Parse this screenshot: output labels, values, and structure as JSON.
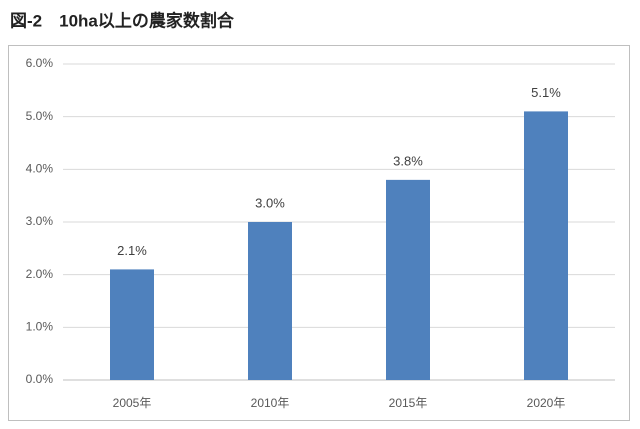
{
  "chart_data": {
    "type": "bar",
    "title": "図-2　10ha以上の農家数割合",
    "categories": [
      "2005年",
      "2010年",
      "2015年",
      "2020年"
    ],
    "values": [
      2.1,
      3.0,
      3.8,
      5.1
    ],
    "value_labels": [
      "2.1%",
      "3.0%",
      "3.8%",
      "5.1%"
    ],
    "color": "#4f81bd",
    "ylim": [
      0,
      6
    ],
    "yticks": [
      {
        "value": 0,
        "label": "0.0%"
      },
      {
        "value": 1,
        "label": "1.0%"
      },
      {
        "value": 2,
        "label": "2.0%"
      },
      {
        "value": 3,
        "label": "3.0%"
      },
      {
        "value": 4,
        "label": "4.0%"
      },
      {
        "value": 5,
        "label": "5.0%"
      },
      {
        "value": 6,
        "label": "6.0%"
      }
    ],
    "grid": true
  }
}
